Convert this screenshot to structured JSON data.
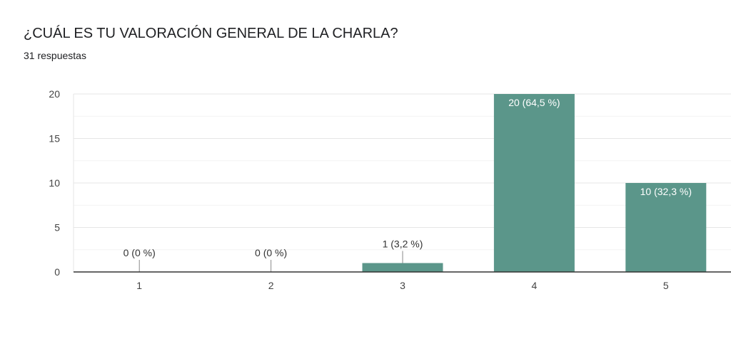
{
  "header": {
    "title": "¿CUÁL ES TU VALORACIÓN GENERAL DE LA CHARLA?",
    "responses": "31 respuestas"
  },
  "colors": {
    "bar": "#5b968a",
    "grid": "#e8e8e8",
    "axis": "#333333",
    "text": "#444444"
  },
  "chart_data": {
    "type": "bar",
    "categories": [
      "1",
      "2",
      "3",
      "4",
      "5"
    ],
    "values": [
      0,
      0,
      1,
      20,
      10
    ],
    "data_labels": [
      "0 (0 %)",
      "0 (0 %)",
      "1 (3,2 %)",
      "20 (64,5 %)",
      "10 (32,3 %)"
    ],
    "yticks": [
      0,
      5,
      10,
      15,
      20
    ],
    "ylim": [
      0,
      20
    ],
    "grid": true,
    "xlabel": "",
    "ylabel": ""
  }
}
